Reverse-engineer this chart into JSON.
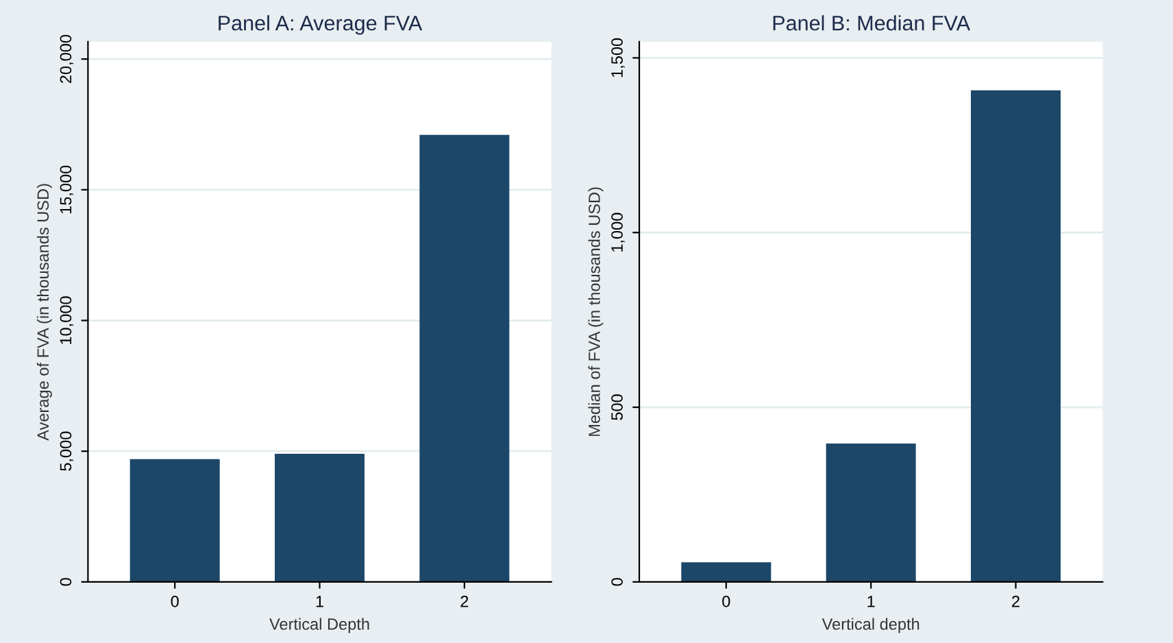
{
  "chart_data": [
    {
      "type": "bar",
      "title": "Panel A: Average FVA",
      "xlabel": "Vertical Depth",
      "ylabel": "Average of FVA (in thousands USD)",
      "categories": [
        "0",
        "1",
        "2"
      ],
      "values": [
        4700,
        4900,
        17100
      ],
      "color": "#1c4769",
      "ylim": [
        0,
        20660
      ],
      "yticks": [
        0,
        {
          "value": 5000,
          "label": "5,000"
        },
        {
          "value": 10000,
          "label": "10,000"
        },
        {
          "value": 15000,
          "label": "15,000"
        },
        {
          "value": 20000,
          "label": "20,000"
        }
      ],
      "grid": "y"
    },
    {
      "type": "bar",
      "title": "Panel B: Median FVA",
      "xlabel": "Vertical depth",
      "ylabel": "Median of FVA (in thousands USD)",
      "categories": [
        "0",
        "1",
        "2"
      ],
      "values": [
        56,
        396,
        1407
      ],
      "color": "#1c4769",
      "ylim": [
        0,
        1546
      ],
      "yticks": [
        0,
        500,
        {
          "value": 1000,
          "label": "1,000"
        },
        {
          "value": 1500,
          "label": "1,500"
        }
      ],
      "grid": "y"
    }
  ]
}
